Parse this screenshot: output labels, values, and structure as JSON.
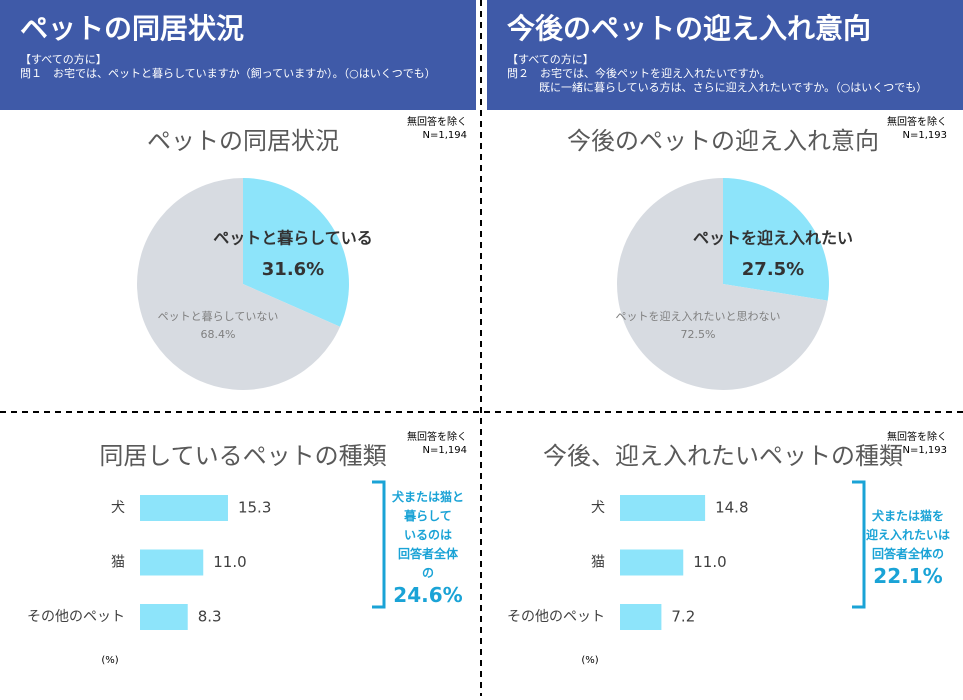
{
  "panels": [
    {
      "title": "ペットの同居状況",
      "lines": [
        "【すべての方に】",
        "問１　お宅では、ペットと暮らしていますか（飼っていますか）。（○はいくつでも）"
      ]
    },
    {
      "title": "今後のペットの迎え入れ意向",
      "lines": [
        "【すべての方に】",
        "問２　お宅では、今後ペットを迎え入れたいですか。",
        "既に一緒に暮らしている方は、さらに迎え入れたいですか。（○はいくつでも）"
      ]
    }
  ],
  "chart_data": [
    {
      "type": "pie",
      "title": "ペットの同居状況",
      "note": "無回答を除く",
      "n": "N=1,194",
      "categories": [
        "ペットと暮らしている",
        "ペットと暮らしていない"
      ],
      "values": [
        31.6,
        68.4
      ],
      "value_labels": [
        "31.6%",
        "68.4%"
      ],
      "colors": [
        "#8de4fa",
        "#d7dbe1"
      ]
    },
    {
      "type": "pie",
      "title": "今後のペットの迎え入れ意向",
      "note": "無回答を除く",
      "n": "N=1,193",
      "categories": [
        "ペットを迎え入れたい",
        "ペットを迎え入れたいと思わない"
      ],
      "values": [
        27.5,
        72.5
      ],
      "value_labels": [
        "27.5%",
        "72.5%"
      ],
      "colors": [
        "#8de4fa",
        "#d7dbe1"
      ]
    },
    {
      "type": "bar",
      "title": "同居しているペットの種類",
      "note": "無回答を除く",
      "n": "N=1,194",
      "categories": [
        "犬",
        "猫",
        "その他のペット"
      ],
      "values": [
        15.3,
        11.0,
        8.3
      ],
      "value_labels": [
        "15.3",
        "11.0",
        "8.3"
      ],
      "color": "#8de4fa",
      "unit": "(%)",
      "annotation": [
        "犬または猫と",
        "暮らして",
        "いるのは",
        "回答者全体",
        "の",
        "24.6%"
      ]
    },
    {
      "type": "bar",
      "title": "今後、迎え入れたいペットの種類",
      "note": "無回答を除く",
      "n": "N=1,193",
      "categories": [
        "犬",
        "猫",
        "その他のペット"
      ],
      "values": [
        14.8,
        11.0,
        7.2
      ],
      "value_labels": [
        "14.8",
        "11.0",
        "7.2"
      ],
      "color": "#8de4fa",
      "unit": "(%)",
      "annotation": [
        "犬または猫を",
        "迎え入れたいは",
        "回答者全体の",
        "22.1%"
      ]
    }
  ]
}
